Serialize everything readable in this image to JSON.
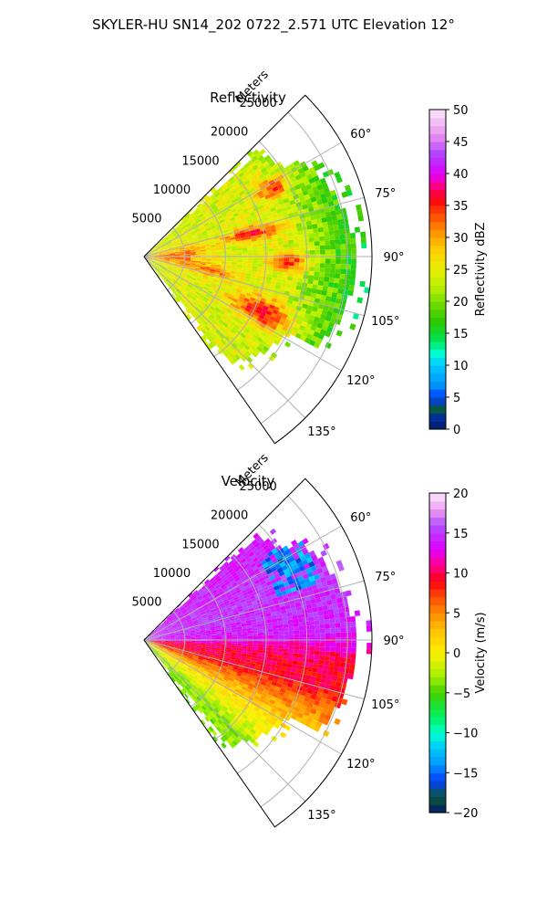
{
  "figure": {
    "suptitle": "SKYLER-HU  SN14_202  0722_2.571 UTC Elevation 12°"
  },
  "chart_data": [
    {
      "type": "heatmap",
      "projection": "polar-sector",
      "title": "Reflectivity",
      "radial_label": "Meters",
      "radial_ticks": [
        5000,
        10000,
        15000,
        20000,
        25000
      ],
      "radial_tick_labels": [
        "5000",
        "10000",
        "15000",
        "20000",
        "25000"
      ],
      "radial_range": [
        0,
        28000
      ],
      "azimuth_range_deg": [
        45,
        145
      ],
      "azimuth_ticks_deg": [
        60,
        75,
        90,
        105,
        120,
        135
      ],
      "azimuth_tick_labels": [
        "60°",
        "75°",
        "90°",
        "105°",
        "120°",
        "135°"
      ],
      "colorbar": {
        "label": "Reflectivity dBZ",
        "range": [
          0,
          50
        ],
        "ticks": [
          0,
          5,
          10,
          15,
          20,
          25,
          30,
          35,
          40,
          45,
          50
        ],
        "tick_labels": [
          "0",
          "5",
          "10",
          "15",
          "20",
          "25",
          "30",
          "35",
          "40",
          "45",
          "50"
        ],
        "stops": [
          {
            "v": 0,
            "c": "#001a66"
          },
          {
            "v": 2,
            "c": "#003399"
          },
          {
            "v": 3,
            "c": "#0a5a3a"
          },
          {
            "v": 5,
            "c": "#003cff"
          },
          {
            "v": 7,
            "c": "#0096ff"
          },
          {
            "v": 10,
            "c": "#00c8ff"
          },
          {
            "v": 12,
            "c": "#00ffd0"
          },
          {
            "v": 14,
            "c": "#00e050"
          },
          {
            "v": 17,
            "c": "#30c800"
          },
          {
            "v": 20,
            "c": "#78e000"
          },
          {
            "v": 22,
            "c": "#b4ee00"
          },
          {
            "v": 25,
            "c": "#e6f000"
          },
          {
            "v": 28,
            "c": "#ffd000"
          },
          {
            "v": 31,
            "c": "#ff9000"
          },
          {
            "v": 34,
            "c": "#ff4000"
          },
          {
            "v": 36,
            "c": "#ff0010"
          },
          {
            "v": 38,
            "c": "#ff0080"
          },
          {
            "v": 40,
            "c": "#e000ff"
          },
          {
            "v": 43,
            "c": "#b040ff"
          },
          {
            "v": 46,
            "c": "#e890f0"
          },
          {
            "v": 50,
            "c": "#fbe6fb"
          }
        ]
      },
      "field_features": {
        "background": 24,
        "edge_fade_range_m": 26000,
        "hotspots": [
          {
            "az": 90,
            "r": 4000,
            "sr": 4000,
            "saz": 14,
            "amp": 9
          },
          {
            "az": 78,
            "r": 13500,
            "sr": 3500,
            "saz": 4,
            "amp": 11
          },
          {
            "az": 62,
            "r": 18000,
            "sr": 2000,
            "saz": 4,
            "amp": 12
          },
          {
            "az": 92,
            "r": 18000,
            "sr": 2500,
            "saz": 4,
            "amp": 11
          },
          {
            "az": 115,
            "r": 16000,
            "sr": 4000,
            "saz": 6,
            "amp": 12
          },
          {
            "az": 102,
            "r": 9000,
            "sr": 3000,
            "saz": 5,
            "amp": 7
          }
        ],
        "outer_green_from_m": 17000
      }
    },
    {
      "type": "heatmap",
      "projection": "polar-sector",
      "title": "Velocity",
      "radial_label": "Meters",
      "radial_ticks": [
        5000,
        10000,
        15000,
        20000,
        25000
      ],
      "radial_tick_labels": [
        "5000",
        "10000",
        "15000",
        "20000",
        "25000"
      ],
      "radial_range": [
        0,
        28000
      ],
      "azimuth_range_deg": [
        45,
        145
      ],
      "azimuth_ticks_deg": [
        60,
        75,
        90,
        105,
        120,
        135
      ],
      "azimuth_tick_labels": [
        "60°",
        "75°",
        "90°",
        "105°",
        "120°",
        "135°"
      ],
      "colorbar": {
        "label": "Velocity (m/s)",
        "range": [
          -20,
          20
        ],
        "ticks": [
          -20,
          -15,
          -10,
          -5,
          0,
          5,
          10,
          15,
          20
        ],
        "tick_labels": [
          "−20",
          "−15",
          "−10",
          "−5",
          "0",
          "5",
          "10",
          "15",
          "20"
        ],
        "stops": [
          {
            "v": -20,
            "c": "#001a66"
          },
          {
            "v": -18,
            "c": "#0a5a3a"
          },
          {
            "v": -16,
            "c": "#003cff"
          },
          {
            "v": -14,
            "c": "#0096ff"
          },
          {
            "v": -12,
            "c": "#00c8ff"
          },
          {
            "v": -10,
            "c": "#00ffd0"
          },
          {
            "v": -8,
            "c": "#00f060"
          },
          {
            "v": -5,
            "c": "#40d000"
          },
          {
            "v": -3,
            "c": "#a0f000"
          },
          {
            "v": 0,
            "c": "#fff000"
          },
          {
            "v": 3,
            "c": "#ffc000"
          },
          {
            "v": 6,
            "c": "#ff7000"
          },
          {
            "v": 9,
            "c": "#ff0010"
          },
          {
            "v": 11,
            "c": "#ff0090"
          },
          {
            "v": 13,
            "c": "#e000ff"
          },
          {
            "v": 16,
            "c": "#b050ff"
          },
          {
            "v": 18,
            "c": "#f0a0f0"
          },
          {
            "v": 20,
            "c": "#fbe6fb"
          }
        ]
      },
      "field_features": {
        "azimuth_profile": [
          {
            "az": 50,
            "v": 14
          },
          {
            "az": 70,
            "v": 15
          },
          {
            "az": 88,
            "v": 14
          },
          {
            "az": 95,
            "v": 10
          },
          {
            "az": 105,
            "v": 9
          },
          {
            "az": 115,
            "v": 4
          },
          {
            "az": 125,
            "v": 0
          },
          {
            "az": 135,
            "v": -3
          },
          {
            "az": 145,
            "v": -4
          }
        ],
        "folded_region": {
          "az_from": 55,
          "az_to": 72,
          "r_from": 17000,
          "r_to": 23000,
          "v": -14
        },
        "edge_fade_range_m": 26000
      }
    }
  ]
}
